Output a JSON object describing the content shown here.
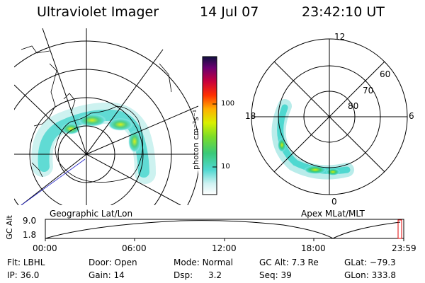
{
  "header": {
    "title": "Ultraviolet Imager",
    "date": "14 Jul 07",
    "time": "23:42:10 UT"
  },
  "colorbar": {
    "unit_label": "photon cm⁻²s⁻¹",
    "ticks": [
      "100",
      "10"
    ]
  },
  "geo_panel": {
    "label": "Geographic Lat/Lon"
  },
  "mag_panel": {
    "label": "Apex MLat/MLT",
    "mlt_labels": {
      "top": "12",
      "left": "18",
      "right": "6",
      "bottom": "0"
    },
    "mlat_labels": [
      "60",
      "70",
      "80"
    ]
  },
  "altitude_plot": {
    "ylabel": "GC Alt",
    "y_ticks": [
      "9.0",
      "1.8"
    ],
    "x_ticks": [
      "00:00",
      "06:00",
      "12:00",
      "18:00",
      "23:59"
    ]
  },
  "info": {
    "row1": [
      {
        "label": "Flt:",
        "value": "LBHL"
      },
      {
        "label": "Door:",
        "value": "Open"
      },
      {
        "label": "Mode:",
        "value": "Normal"
      },
      {
        "label": "GC Alt:",
        "value": "7.3 Re"
      },
      {
        "label": "GLat:",
        "value": "−79.3"
      }
    ],
    "row2": [
      {
        "label": "IP:",
        "value": "36.0"
      },
      {
        "label": "Gain:",
        "value": "14"
      },
      {
        "label": "Dsp:",
        "value": "3.2"
      },
      {
        "label": "Seq:",
        "value": "39"
      },
      {
        "label": "GLon:",
        "value": "333.8"
      }
    ]
  }
}
